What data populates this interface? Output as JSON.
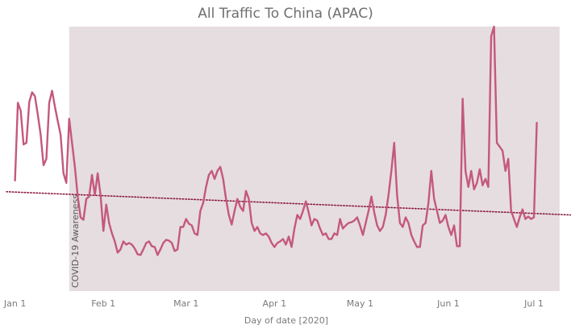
{
  "chart_data": {
    "type": "line",
    "title": "All Traffic To China (APAC)",
    "xlabel": "Day of date [2020]",
    "ylabel": "",
    "x_ticks": [
      "Jan 1",
      "Feb 1",
      "Mar 1",
      "Apr 1",
      "May 1",
      "Jun 1",
      "Jul 1"
    ],
    "x_ticks_day": [
      0,
      31,
      60,
      91,
      121,
      152,
      182
    ],
    "xlim_day": [
      -3,
      195
    ],
    "ylim": [
      0,
      330
    ],
    "y_axis_visible": false,
    "grid": false,
    "annotation": {
      "label": "COVID-19 Awareness",
      "band_start_day": 19,
      "band_end_day": 191,
      "band_color": "#e6dde0"
    },
    "trend_line": {
      "style": "dotted",
      "color": "#8b1a3e",
      "start": {
        "day": -3,
        "value": 124
      },
      "end": {
        "day": 195,
        "value": 95
      }
    },
    "series": [
      {
        "color": "#c4587e",
        "start_date": "2020-01-01",
        "values": [
          138,
          235,
          225,
          183,
          185,
          236,
          248,
          243,
          220,
          195,
          157,
          165,
          235,
          250,
          230,
          212,
          195,
          147,
          135,
          215,
          185,
          155,
          118,
          92,
          89,
          115,
          118,
          145,
          120,
          147,
          120,
          75,
          108,
          85,
          72,
          62,
          48,
          52,
          62,
          58,
          60,
          58,
          53,
          46,
          45,
          52,
          60,
          62,
          56,
          55,
          45,
          52,
          60,
          64,
          63,
          60,
          50,
          52,
          80,
          80,
          90,
          84,
          82,
          72,
          70,
          100,
          110,
          130,
          145,
          150,
          140,
          150,
          155,
          140,
          115,
          95,
          83,
          100,
          115,
          105,
          100,
          125,
          115,
          85,
          75,
          80,
          72,
          70,
          72,
          68,
          60,
          55,
          60,
          62,
          65,
          58,
          68,
          55,
          78,
          95,
          90,
          100,
          112,
          98,
          82,
          90,
          88,
          78,
          70,
          72,
          65,
          65,
          72,
          70,
          90,
          78,
          82,
          85,
          86,
          88,
          92,
          82,
          70,
          85,
          100,
          118,
          98,
          82,
          75,
          80,
          95,
          120,
          150,
          185,
          120,
          85,
          80,
          92,
          85,
          70,
          62,
          55,
          55,
          82,
          85,
          110,
          150,
          115,
          100,
          85,
          88,
          95,
          80,
          70,
          82,
          56,
          56,
          240,
          150,
          130,
          150,
          127,
          135,
          152,
          132,
          140,
          130,
          318,
          330,
          185,
          180,
          175,
          150,
          165,
          100,
          90,
          80,
          92,
          102,
          90,
          93,
          90,
          92,
          210
        ]
      }
    ]
  }
}
